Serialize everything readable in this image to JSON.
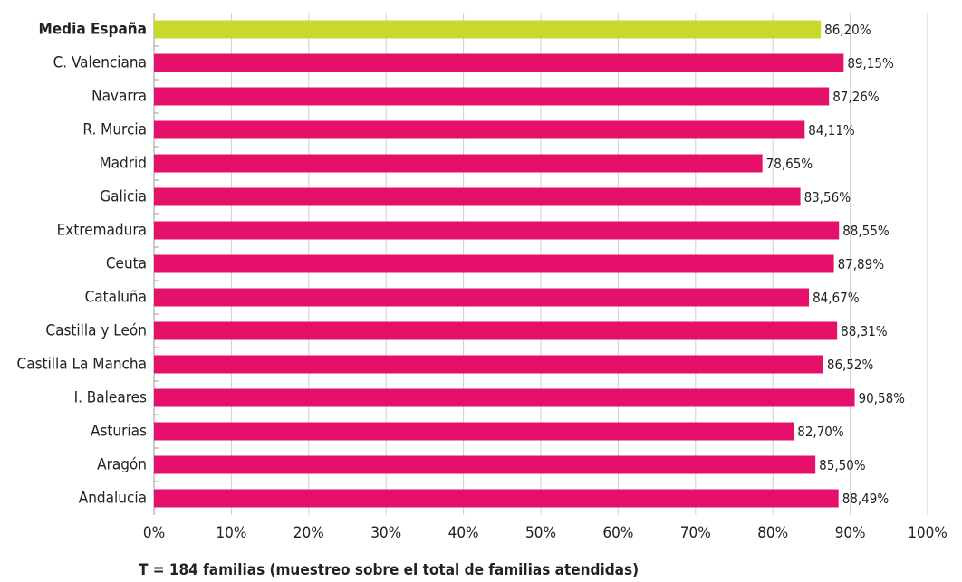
{
  "chart_data": {
    "type": "bar",
    "orientation": "horizontal",
    "categories": [
      "Media España",
      "C. Valenciana",
      "Navarra",
      "R. Murcia",
      "Madrid",
      "Galicia",
      "Extremadura",
      "Ceuta",
      "Cataluña",
      "Castilla y León",
      "Castilla La Mancha",
      "I. Baleares",
      "Asturias",
      "Aragón",
      "Andalucía"
    ],
    "values": [
      86.2,
      89.15,
      87.26,
      84.11,
      78.65,
      83.56,
      88.55,
      87.89,
      84.67,
      88.31,
      86.52,
      90.58,
      82.7,
      85.5,
      88.49
    ],
    "value_labels": [
      "86,20%",
      "89,15%",
      "87,26%",
      "84,11%",
      "78,65%",
      "83,56%",
      "88,55%",
      "87,89%",
      "84,67%",
      "88,31%",
      "86,52%",
      "90,58%",
      "82,70%",
      "85,50%",
      "88,49%"
    ],
    "colors": [
      "#c9d82b",
      "#e5106a",
      "#e5106a",
      "#e5106a",
      "#e5106a",
      "#e5106a",
      "#e5106a",
      "#e5106a",
      "#e5106a",
      "#e5106a",
      "#e5106a",
      "#e5106a",
      "#e5106a",
      "#e5106a",
      "#e5106a"
    ],
    "xlim": [
      0,
      100
    ],
    "xticks": [
      {
        "value": 0,
        "label": "0%"
      },
      {
        "value": 10,
        "label": "10%"
      },
      {
        "value": 20,
        "label": "20%"
      },
      {
        "value": 30,
        "label": "30%"
      },
      {
        "value": 40,
        "label": "40%"
      },
      {
        "value": 50,
        "label": "50%"
      },
      {
        "value": 60,
        "label": "60%"
      },
      {
        "value": 70,
        "label": "70%"
      },
      {
        "value": 80,
        "label": "80%"
      },
      {
        "value": 90,
        "label": "90%"
      },
      {
        "value": 100,
        "label": "100%"
      }
    ],
    "grid": true,
    "note": "T = 184 familias (muestreo sobre el total de familias atendidas)"
  }
}
